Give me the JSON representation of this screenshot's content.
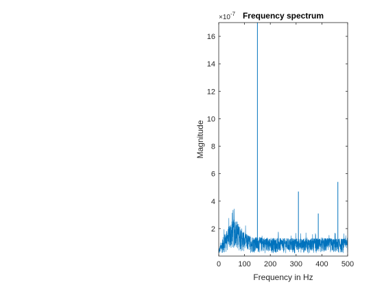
{
  "chart_data": {
    "type": "line",
    "title": "Frequency spectrum",
    "xlabel": "Frequency in Hz",
    "ylabel": "Magnitude",
    "y_exponent_label": "×10",
    "xlim": [
      0,
      500
    ],
    "ylim": [
      0,
      17
    ],
    "x_ticks": [
      0,
      100,
      200,
      300,
      400,
      500
    ],
    "y_ticks": [
      2,
      4,
      6,
      8,
      10,
      12,
      14,
      16
    ],
    "grid": false,
    "legend": "none",
    "series": [
      {
        "color": "#0072bd",
        "noise_envelope": {
          "x": [
            0,
            5,
            10,
            20,
            30,
            40,
            50,
            60,
            70,
            80,
            90,
            100,
            110,
            120,
            130,
            140,
            150,
            200,
            250,
            300,
            350,
            400,
            450,
            500
          ],
          "y": [
            0.4,
            0.8,
            1.0,
            1.6,
            1.8,
            2.2,
            2.5,
            2.7,
            2.6,
            2.3,
            2.0,
            1.7,
            1.6,
            1.5,
            1.45,
            1.4,
            1.4,
            1.35,
            1.3,
            1.3,
            1.3,
            1.3,
            1.3,
            1.25
          ]
        },
        "peaks": [
          {
            "x": 150,
            "y": 17
          },
          {
            "x": 309,
            "y": 4.7
          },
          {
            "x": 386,
            "y": 3.1
          },
          {
            "x": 462,
            "y": 5.4
          }
        ]
      }
    ]
  }
}
